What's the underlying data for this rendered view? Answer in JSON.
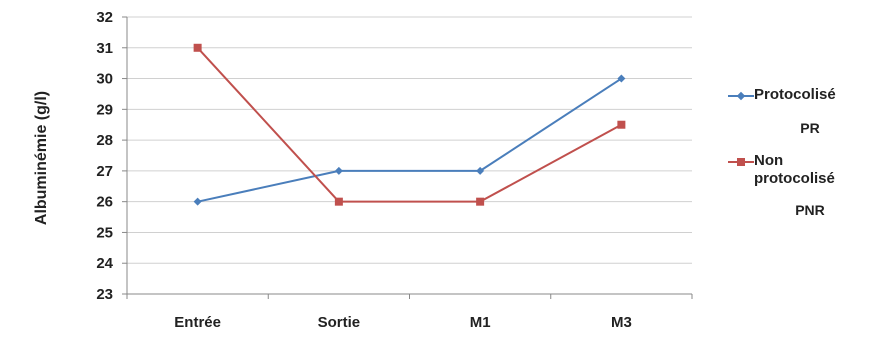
{
  "chart_data": {
    "type": "line",
    "ylabel": "Albuminémie (g/l)",
    "categories": [
      "Entrée",
      "Sortie",
      "M1",
      "M3"
    ],
    "ylim": [
      23,
      32
    ],
    "yticks": [
      23,
      24,
      25,
      26,
      27,
      28,
      29,
      30,
      31,
      32
    ],
    "grid": true,
    "legend_position": "right",
    "series": [
      {
        "name": "Protocolisé",
        "abbr": "PR",
        "color": "#4a7ebb",
        "marker": "diamond",
        "values": [
          26,
          27,
          27,
          30
        ]
      },
      {
        "name": "Non protocolisé",
        "abbr": "PNR",
        "color": "#c0504d",
        "marker": "square",
        "values": [
          31,
          26,
          26,
          28.5
        ]
      }
    ]
  }
}
